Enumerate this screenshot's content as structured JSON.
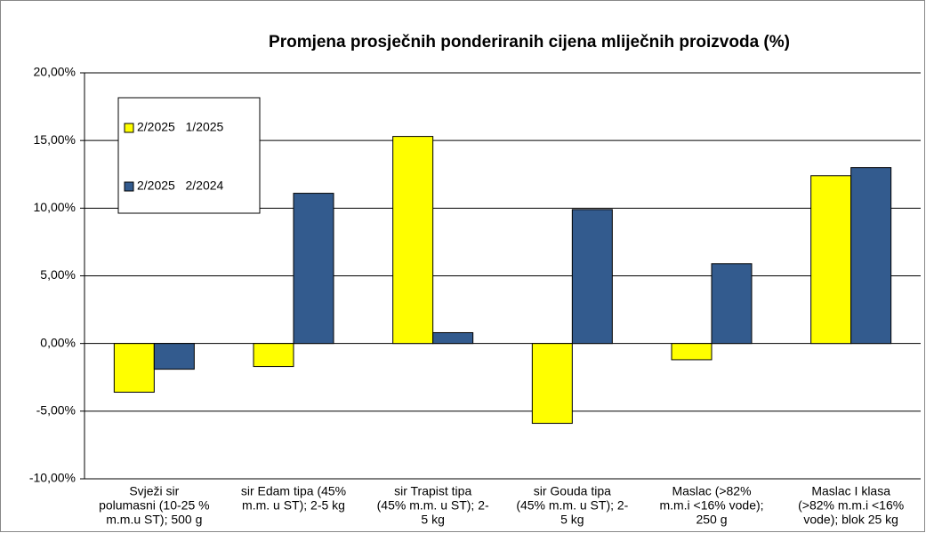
{
  "chart_data": {
    "type": "bar",
    "title": "Promjena prosječnih ponderiranih cijena mliječnih proizvoda (%)",
    "categories": [
      [
        "Svježi sir",
        "polumasni (10-25 %",
        "m.m.u ST); 500 g"
      ],
      [
        "sir Edam tipa  (45%",
        "m.m. u ST); 2-5 kg"
      ],
      [
        "sir Trapist tipa",
        "(45% m.m. u ST); 2-",
        "5 kg"
      ],
      [
        "sir Gouda tipa",
        "(45% m.m. u ST); 2-",
        "5 kg"
      ],
      [
        "Maslac  (>82%",
        "m.m.i <16% vode);",
        "250 g"
      ],
      [
        "Maslac I klasa",
        "(>82% m.m.i <16%",
        "vode); blok 25 kg"
      ]
    ],
    "series": [
      {
        "name": "2/2025   1/2025",
        "color": "#ffff00",
        "values": [
          -3.6,
          -1.7,
          15.3,
          -5.9,
          -1.2,
          12.4
        ]
      },
      {
        "name": "2/2025   2/2024",
        "color": "#335b8e",
        "values": [
          -1.9,
          11.1,
          0.8,
          9.9,
          5.9,
          13.0
        ]
      }
    ],
    "ylim": [
      -10,
      20
    ],
    "yticks": [
      {
        "value": -10,
        "label": "-10,00%"
      },
      {
        "value": -5,
        "label": "-5,00%"
      },
      {
        "value": 0,
        "label": "0,00%"
      },
      {
        "value": 5,
        "label": "5,00%"
      },
      {
        "value": 10,
        "label": "10,00%"
      },
      {
        "value": 15,
        "label": "15,00%"
      },
      {
        "value": 20,
        "label": "20,00%"
      }
    ],
    "grid": true
  }
}
